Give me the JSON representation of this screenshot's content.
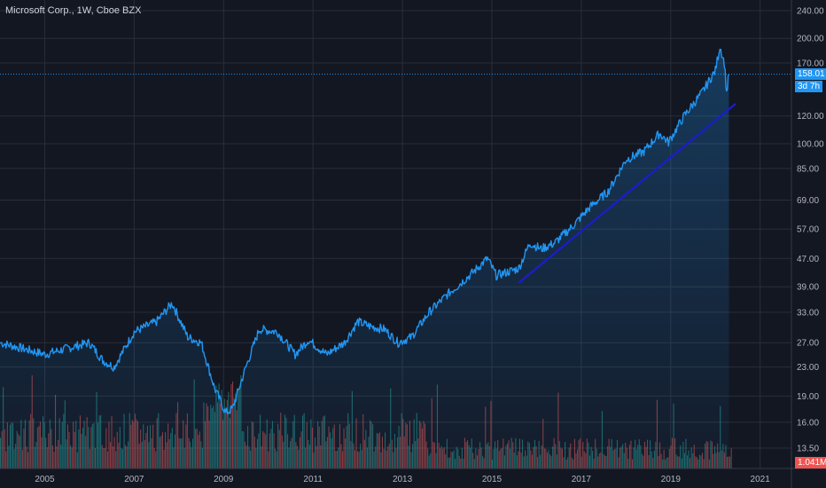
{
  "chart_data": {
    "type": "line",
    "title": "Microsoft Corp., 1W, Cboe BZX",
    "x_range": [
      "2004-01",
      "2021-08"
    ],
    "x_ticks": [
      "2005",
      "2007",
      "2009",
      "2011",
      "2013",
      "2015",
      "2017",
      "2019",
      "2021"
    ],
    "y_scale": "log",
    "y_range": [
      11.8,
      250
    ],
    "y_ticks": [
      "240.00",
      "200.00",
      "170.00",
      "120.00",
      "100.00",
      "85.00",
      "69.00",
      "57.00",
      "47.00",
      "39.00",
      "33.00",
      "27.00",
      "23.00",
      "19.00",
      "16.00",
      "13.50"
    ],
    "last_price_label": "158.01",
    "last_price": 158.01,
    "countdown_label": "3d 7h",
    "volume_label": "1.041M",
    "grid": true,
    "series": [
      {
        "type": "area",
        "x": [
          2004.0,
          2004.5,
          2005.0,
          2005.5,
          2006.0,
          2006.3,
          2006.55,
          2007.0,
          2007.5,
          2007.85,
          2008.2,
          2008.5,
          2008.8,
          2009.05,
          2009.2,
          2009.5,
          2009.8,
          2010.2,
          2010.6,
          2010.9,
          2011.3,
          2011.7,
          2012.0,
          2012.3,
          2012.6,
          2012.9,
          2013.2,
          2013.6,
          2014.0,
          2014.5,
          2014.9,
          2015.1,
          2015.6,
          2015.85,
          2016.1,
          2016.4,
          2016.8,
          2017.2,
          2017.6,
          2018.0,
          2018.4,
          2018.75,
          2018.95,
          2019.3,
          2019.7,
          2020.0,
          2020.1,
          2020.2,
          2020.25,
          2020.3
        ],
        "y": [
          27,
          26,
          25,
          26,
          27,
          24,
          23,
          29,
          31,
          35,
          28,
          27,
          20,
          17,
          17.5,
          23,
          29.5,
          29,
          25,
          27.5,
          25,
          27,
          31,
          30,
          29.5,
          27,
          28,
          33,
          37,
          42,
          47,
          42,
          44,
          52,
          50,
          52,
          58,
          66,
          73,
          90,
          95,
          107,
          101,
          120,
          140,
          162,
          190,
          170,
          140,
          158
        ]
      },
      {
        "type": "trendline",
        "x": [
          2015.6,
          2020.45
        ],
        "y": [
          40,
          130
        ]
      }
    ],
    "volume": {
      "type": "bar",
      "colors": [
        "#26a69a",
        "#ef5350"
      ]
    }
  },
  "colors": {
    "background": "#131722",
    "grid": "#2a2e39",
    "price_line": "#2196f3",
    "trend_line": "#1c1cce",
    "badge": "#2196f3",
    "volume_up": "#26a69a",
    "volume_down": "#ef5350"
  }
}
